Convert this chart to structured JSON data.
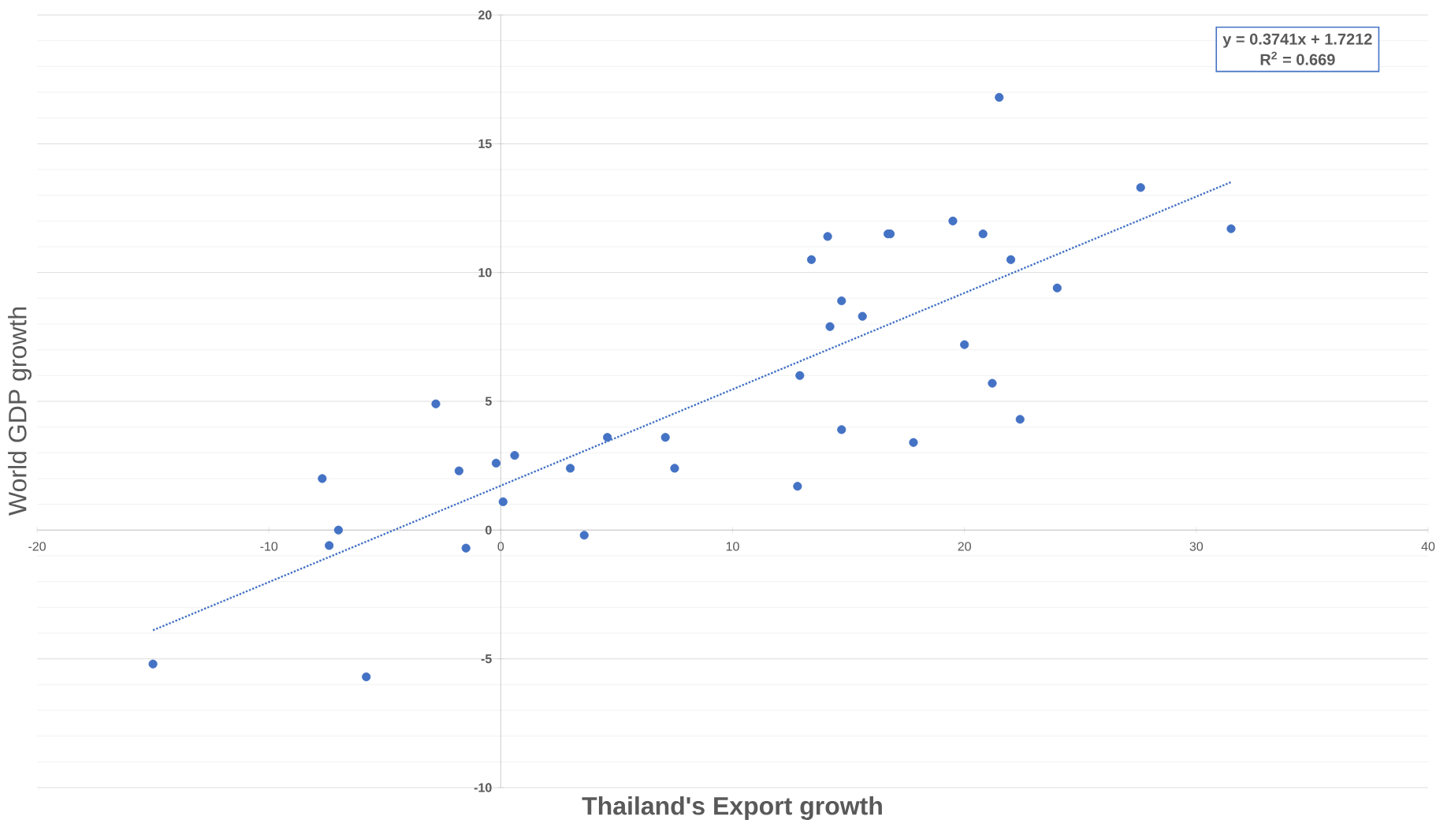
{
  "chart_data": {
    "type": "scatter",
    "xlabel": "Thailand's Export growth",
    "ylabel": "World GDP growth",
    "xlim": [
      -20,
      40
    ],
    "xticks": [
      -20,
      -10,
      0,
      10,
      20,
      30,
      40
    ],
    "ylim": [
      -10,
      20
    ],
    "yticks": [
      -10,
      -5,
      0,
      5,
      10,
      15,
      20
    ],
    "grid": "y",
    "annotations": [
      "y = 0.3741x + 1.7212",
      "R$^{2}$ = 0.669"
    ],
    "series": [
      {
        "color": "#4472c4",
        "marker": "circle",
        "x": [
          -15.0,
          -7.7,
          -7.4,
          -7.0,
          -5.8,
          -2.8,
          -1.8,
          -1.5,
          -0.2,
          0.1,
          0.6,
          3.0,
          3.6,
          4.6,
          7.1,
          7.5,
          12.8,
          12.9,
          13.4,
          14.1,
          14.2,
          14.7,
          14.7,
          15.6,
          16.7,
          16.8,
          17.8,
          19.5,
          20.0,
          20.8,
          21.2,
          21.5,
          22.0,
          22.4,
          24.0,
          27.6,
          31.5
        ],
        "values": [
          -5.2,
          2.0,
          -0.6,
          0.0,
          -5.7,
          4.9,
          2.3,
          -0.7,
          2.6,
          1.1,
          2.9,
          2.4,
          -0.2,
          3.6,
          3.6,
          2.4,
          1.7,
          6.0,
          10.5,
          11.4,
          7.9,
          8.9,
          3.9,
          8.3,
          11.5,
          11.5,
          3.4,
          12.0,
          7.2,
          11.5,
          5.7,
          16.8,
          10.5,
          4.3,
          9.4,
          13.3,
          11.7
        ]
      },
      {
        "type": "line",
        "color": "#4472c4",
        "marker": "none",
        "line_style": "dotted",
        "x": [
          -15.0,
          31.5
        ],
        "values": [
          -3.89,
          13.51
        ]
      }
    ]
  }
}
